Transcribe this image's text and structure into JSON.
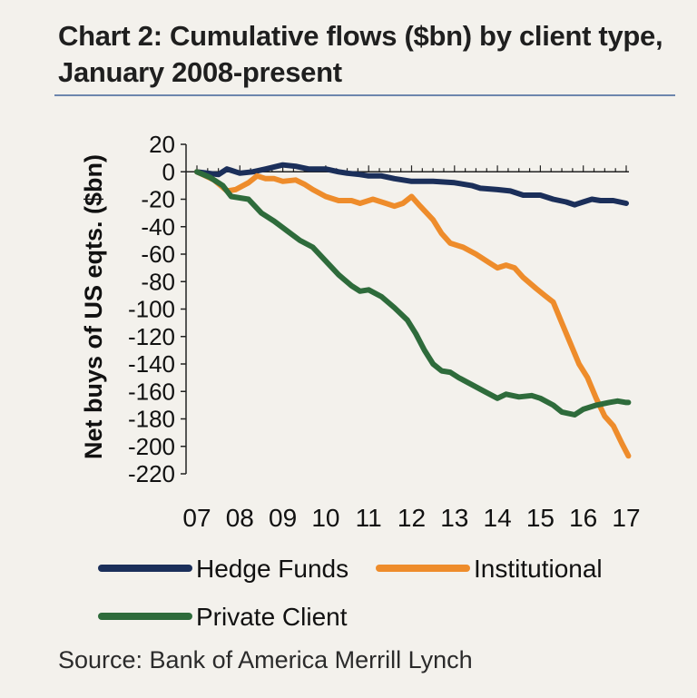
{
  "title": "Chart 2: Cumulative flows ($bn) by client type, January 2008-present",
  "source": "Source: Bank of America Merrill Lynch",
  "chart_data": {
    "type": "line",
    "xlabel": "",
    "ylabel": "Net buys of US eqts. ($bn)",
    "ylim": [
      -220,
      20
    ],
    "yticks": [
      20,
      0,
      -20,
      -40,
      -60,
      -80,
      -100,
      -120,
      -140,
      -160,
      -180,
      -200,
      -220
    ],
    "xlim": [
      2007,
      2017
    ],
    "xticks": [
      {
        "label": "07",
        "value": 2007
      },
      {
        "label": "08",
        "value": 2008
      },
      {
        "label": "09",
        "value": 2009
      },
      {
        "label": "10",
        "value": 2010
      },
      {
        "label": "11",
        "value": 2011
      },
      {
        "label": "12",
        "value": 2012
      },
      {
        "label": "13",
        "value": 2013
      },
      {
        "label": "14",
        "value": 2014
      },
      {
        "label": "15",
        "value": 2015
      },
      {
        "label": "16",
        "value": 2016
      },
      {
        "label": "17",
        "value": 2017
      }
    ],
    "grid": false,
    "legend_position": "bottom",
    "series": [
      {
        "name": "Hedge Funds",
        "color": "#1b2f5a",
        "points": [
          [
            2007.0,
            0
          ],
          [
            2007.5,
            -2
          ],
          [
            2007.7,
            2
          ],
          [
            2008.0,
            -1
          ],
          [
            2008.3,
            0
          ],
          [
            2008.6,
            2
          ],
          [
            2009.0,
            5
          ],
          [
            2009.3,
            4
          ],
          [
            2009.6,
            2
          ],
          [
            2010.0,
            2
          ],
          [
            2010.3,
            0
          ],
          [
            2010.5,
            -1
          ],
          [
            2010.8,
            -2
          ],
          [
            2011.0,
            -3
          ],
          [
            2011.3,
            -3
          ],
          [
            2011.6,
            -5
          ],
          [
            2012.0,
            -7
          ],
          [
            2012.5,
            -7
          ],
          [
            2013.0,
            -8
          ],
          [
            2013.4,
            -10
          ],
          [
            2013.6,
            -12
          ],
          [
            2014.0,
            -13
          ],
          [
            2014.3,
            -14
          ],
          [
            2014.6,
            -17
          ],
          [
            2015.0,
            -17
          ],
          [
            2015.3,
            -20
          ],
          [
            2015.6,
            -22
          ],
          [
            2015.8,
            -24
          ],
          [
            2016.0,
            -22
          ],
          [
            2016.2,
            -20
          ],
          [
            2016.4,
            -21
          ],
          [
            2016.7,
            -21
          ],
          [
            2017.0,
            -23
          ]
        ]
      },
      {
        "name": "Institutional",
        "color": "#ee8c2b",
        "points": [
          [
            2007.0,
            0
          ],
          [
            2007.2,
            -3
          ],
          [
            2007.4,
            -6
          ],
          [
            2007.7,
            -14
          ],
          [
            2007.9,
            -13
          ],
          [
            2008.2,
            -8
          ],
          [
            2008.4,
            -3
          ],
          [
            2008.6,
            -5
          ],
          [
            2008.8,
            -5
          ],
          [
            2009.0,
            -7
          ],
          [
            2009.3,
            -6
          ],
          [
            2009.5,
            -9
          ],
          [
            2009.7,
            -13
          ],
          [
            2010.0,
            -18
          ],
          [
            2010.3,
            -21
          ],
          [
            2010.6,
            -21
          ],
          [
            2010.8,
            -23
          ],
          [
            2011.1,
            -20
          ],
          [
            2011.4,
            -23
          ],
          [
            2011.6,
            -25
          ],
          [
            2011.8,
            -23
          ],
          [
            2012.0,
            -18
          ],
          [
            2012.2,
            -25
          ],
          [
            2012.5,
            -35
          ],
          [
            2012.7,
            -45
          ],
          [
            2012.9,
            -52
          ],
          [
            2013.2,
            -55
          ],
          [
            2013.5,
            -60
          ],
          [
            2013.8,
            -66
          ],
          [
            2014.0,
            -70
          ],
          [
            2014.2,
            -68
          ],
          [
            2014.4,
            -70
          ],
          [
            2014.6,
            -77
          ],
          [
            2014.9,
            -85
          ],
          [
            2015.1,
            -90
          ],
          [
            2015.3,
            -95
          ],
          [
            2015.5,
            -110
          ],
          [
            2015.7,
            -125
          ],
          [
            2015.9,
            -140
          ],
          [
            2016.1,
            -150
          ],
          [
            2016.3,
            -165
          ],
          [
            2016.5,
            -178
          ],
          [
            2016.7,
            -185
          ],
          [
            2016.9,
            -198
          ],
          [
            2017.05,
            -207
          ]
        ]
      },
      {
        "name": "Private Client",
        "color": "#2e6b3b",
        "points": [
          [
            2007.0,
            0
          ],
          [
            2007.3,
            -4
          ],
          [
            2007.6,
            -10
          ],
          [
            2007.8,
            -18
          ],
          [
            2008.2,
            -20
          ],
          [
            2008.5,
            -30
          ],
          [
            2008.8,
            -36
          ],
          [
            2009.1,
            -43
          ],
          [
            2009.4,
            -50
          ],
          [
            2009.7,
            -55
          ],
          [
            2010.0,
            -65
          ],
          [
            2010.3,
            -75
          ],
          [
            2010.6,
            -83
          ],
          [
            2010.8,
            -87
          ],
          [
            2011.0,
            -86
          ],
          [
            2011.3,
            -91
          ],
          [
            2011.6,
            -99
          ],
          [
            2011.9,
            -108
          ],
          [
            2012.1,
            -118
          ],
          [
            2012.3,
            -130
          ],
          [
            2012.5,
            -140
          ],
          [
            2012.7,
            -145
          ],
          [
            2012.9,
            -146
          ],
          [
            2013.1,
            -150
          ],
          [
            2013.4,
            -155
          ],
          [
            2013.7,
            -160
          ],
          [
            2014.0,
            -165
          ],
          [
            2014.2,
            -162
          ],
          [
            2014.5,
            -164
          ],
          [
            2014.8,
            -163
          ],
          [
            2015.0,
            -165
          ],
          [
            2015.3,
            -170
          ],
          [
            2015.5,
            -175
          ],
          [
            2015.8,
            -177
          ],
          [
            2016.0,
            -173
          ],
          [
            2016.3,
            -170
          ],
          [
            2016.6,
            -168
          ],
          [
            2016.8,
            -167
          ],
          [
            2017.0,
            -168
          ],
          [
            2017.05,
            -168
          ]
        ]
      }
    ]
  }
}
